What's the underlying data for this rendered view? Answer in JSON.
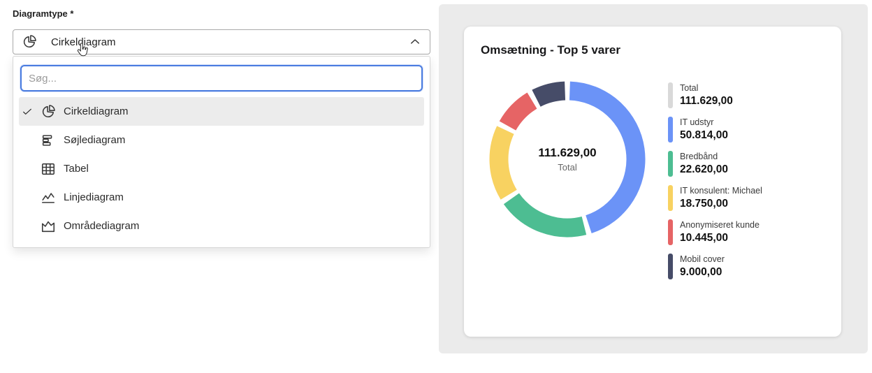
{
  "colors": {
    "panel_bg": "#ebebeb",
    "focus_blue": "#4a7ce0",
    "selected_row_bg": "#ececec"
  },
  "form": {
    "label": "Diagramtype *",
    "select": {
      "value": "Cirkeldiagram",
      "icon": "pie-chart-icon",
      "state_icon": "chevron-up-icon"
    },
    "search": {
      "placeholder": "Søg...",
      "value": ""
    },
    "options": [
      {
        "label": "Cirkeldiagram",
        "icon": "pie-chart-icon",
        "selected": true
      },
      {
        "label": "Søjlediagram",
        "icon": "bar-chart-icon",
        "selected": false
      },
      {
        "label": "Tabel",
        "icon": "table-icon",
        "selected": false
      },
      {
        "label": "Linjediagram",
        "icon": "line-chart-icon",
        "selected": false
      },
      {
        "label": "Områdediagram",
        "icon": "area-chart-icon",
        "selected": false
      }
    ]
  },
  "chart_data": {
    "type": "pie",
    "donut": true,
    "title": "Omsætning - Top 5 varer",
    "legend_position": "right",
    "center": {
      "value": "111.629,00",
      "label": "Total"
    },
    "total": {
      "name": "Total",
      "value": 111629.0,
      "display": "111.629,00",
      "color": "#d9d9d9"
    },
    "series": [
      {
        "name": "IT udstyr",
        "value": 50814.0,
        "display": "50.814,00",
        "color": "#6b93f7"
      },
      {
        "name": "Bredbånd",
        "value": 22620.0,
        "display": "22.620,00",
        "color": "#4dbd92"
      },
      {
        "name": "IT konsulent: Michael",
        "value": 18750.0,
        "display": "18.750,00",
        "color": "#f8d261"
      },
      {
        "name": "Anonymiseret kunde",
        "value": 10445.0,
        "display": "10.445,00",
        "color": "#e66465"
      },
      {
        "name": "Mobil cover",
        "value": 9000.0,
        "display": "9.000,00",
        "color": "#464c68"
      }
    ]
  }
}
